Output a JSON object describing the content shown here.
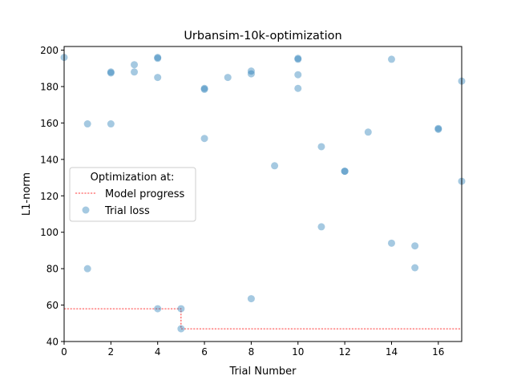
{
  "chart_data": {
    "type": "scatter",
    "title": "Urbansim-10k-optimization",
    "xlabel": "Trial Number",
    "ylabel": "L1-norm",
    "xlim": [
      0,
      17
    ],
    "ylim": [
      40,
      202
    ],
    "x_ticks": [
      0,
      2,
      4,
      6,
      8,
      10,
      12,
      14,
      16
    ],
    "y_ticks": [
      40,
      60,
      80,
      100,
      120,
      140,
      160,
      180,
      200
    ],
    "grid": false,
    "legend": {
      "title": "Optimization at:",
      "placement": "center-left",
      "entries": [
        {
          "label": "Model progress",
          "marker": "dashed-line",
          "color": "#ff0000"
        },
        {
          "label": "Trial loss",
          "marker": "circle",
          "color": "#1f77b4"
        }
      ]
    },
    "series": [
      {
        "name": "Trial loss",
        "color": "#1f77b4",
        "points": [
          [
            0,
            196
          ],
          [
            1,
            159.5
          ],
          [
            1,
            80
          ],
          [
            2,
            188
          ],
          [
            2,
            187.5
          ],
          [
            2,
            159.5
          ],
          [
            3,
            192
          ],
          [
            3,
            188
          ],
          [
            4,
            196
          ],
          [
            4,
            195.5
          ],
          [
            4,
            185
          ],
          [
            4,
            58
          ],
          [
            5,
            58
          ],
          [
            5,
            47
          ],
          [
            6,
            179
          ],
          [
            6,
            178.5
          ],
          [
            6,
            151.5
          ],
          [
            7,
            185
          ],
          [
            8,
            188.5
          ],
          [
            8,
            187
          ],
          [
            8,
            63.5
          ],
          [
            9,
            136.5
          ],
          [
            10,
            195.5
          ],
          [
            10,
            195
          ],
          [
            10,
            186.5
          ],
          [
            10,
            179
          ],
          [
            11,
            147
          ],
          [
            11,
            103
          ],
          [
            12,
            133.5
          ],
          [
            12,
            133.5
          ],
          [
            13,
            155
          ],
          [
            14,
            195
          ],
          [
            14,
            94
          ],
          [
            15,
            92.5
          ],
          [
            15,
            80.5
          ],
          [
            16,
            157
          ],
          [
            16,
            156.5
          ],
          [
            17,
            183
          ],
          [
            17,
            128
          ]
        ]
      },
      {
        "name": "Model progress",
        "color": "#ff0000",
        "style": "step-dashed",
        "points": [
          [
            0,
            58
          ],
          [
            5,
            58
          ],
          [
            5,
            47
          ],
          [
            17,
            47
          ]
        ]
      }
    ]
  }
}
